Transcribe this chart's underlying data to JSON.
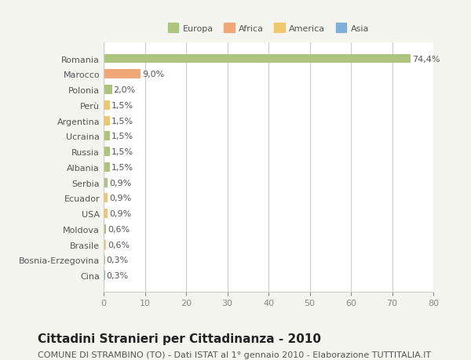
{
  "categories": [
    "Romania",
    "Marocco",
    "Polonia",
    "Perù",
    "Argentina",
    "Ucraina",
    "Russia",
    "Albania",
    "Serbia",
    "Ecuador",
    "USA",
    "Moldova",
    "Brasile",
    "Bosnia-Erzegovina",
    "Cina"
  ],
  "values": [
    74.4,
    9.0,
    2.0,
    1.5,
    1.5,
    1.5,
    1.5,
    1.5,
    0.9,
    0.9,
    0.9,
    0.6,
    0.6,
    0.3,
    0.3
  ],
  "labels": [
    "74,4%",
    "9,0%",
    "2,0%",
    "1,5%",
    "1,5%",
    "1,5%",
    "1,5%",
    "1,5%",
    "0,9%",
    "0,9%",
    "0,9%",
    "0,6%",
    "0,6%",
    "0,3%",
    "0,3%"
  ],
  "colors": [
    "#adc47e",
    "#f0a878",
    "#adc47e",
    "#f0c86c",
    "#f0c86c",
    "#adc47e",
    "#adc47e",
    "#adc47e",
    "#adc47e",
    "#f0c86c",
    "#f0c86c",
    "#adc47e",
    "#f0c86c",
    "#adc47e",
    "#7fb0d8"
  ],
  "legend_labels": [
    "Europa",
    "Africa",
    "America",
    "Asia"
  ],
  "legend_colors": [
    "#adc47e",
    "#f0a878",
    "#f0c86c",
    "#7fb0d8"
  ],
  "xlim": [
    0,
    80
  ],
  "xticks": [
    0,
    10,
    20,
    30,
    40,
    50,
    60,
    70,
    80
  ],
  "title": "Cittadini Stranieri per Cittadinanza - 2010",
  "subtitle": "COMUNE DI STRAMBINO (TO) - Dati ISTAT al 1° gennaio 2010 - Elaborazione TUTTITALIA.IT",
  "bg_color": "#f5f5f0",
  "plot_bg_color": "#ffffff",
  "grid_color": "#cccccc",
  "label_fontsize": 8,
  "title_fontsize": 11,
  "subtitle_fontsize": 8
}
